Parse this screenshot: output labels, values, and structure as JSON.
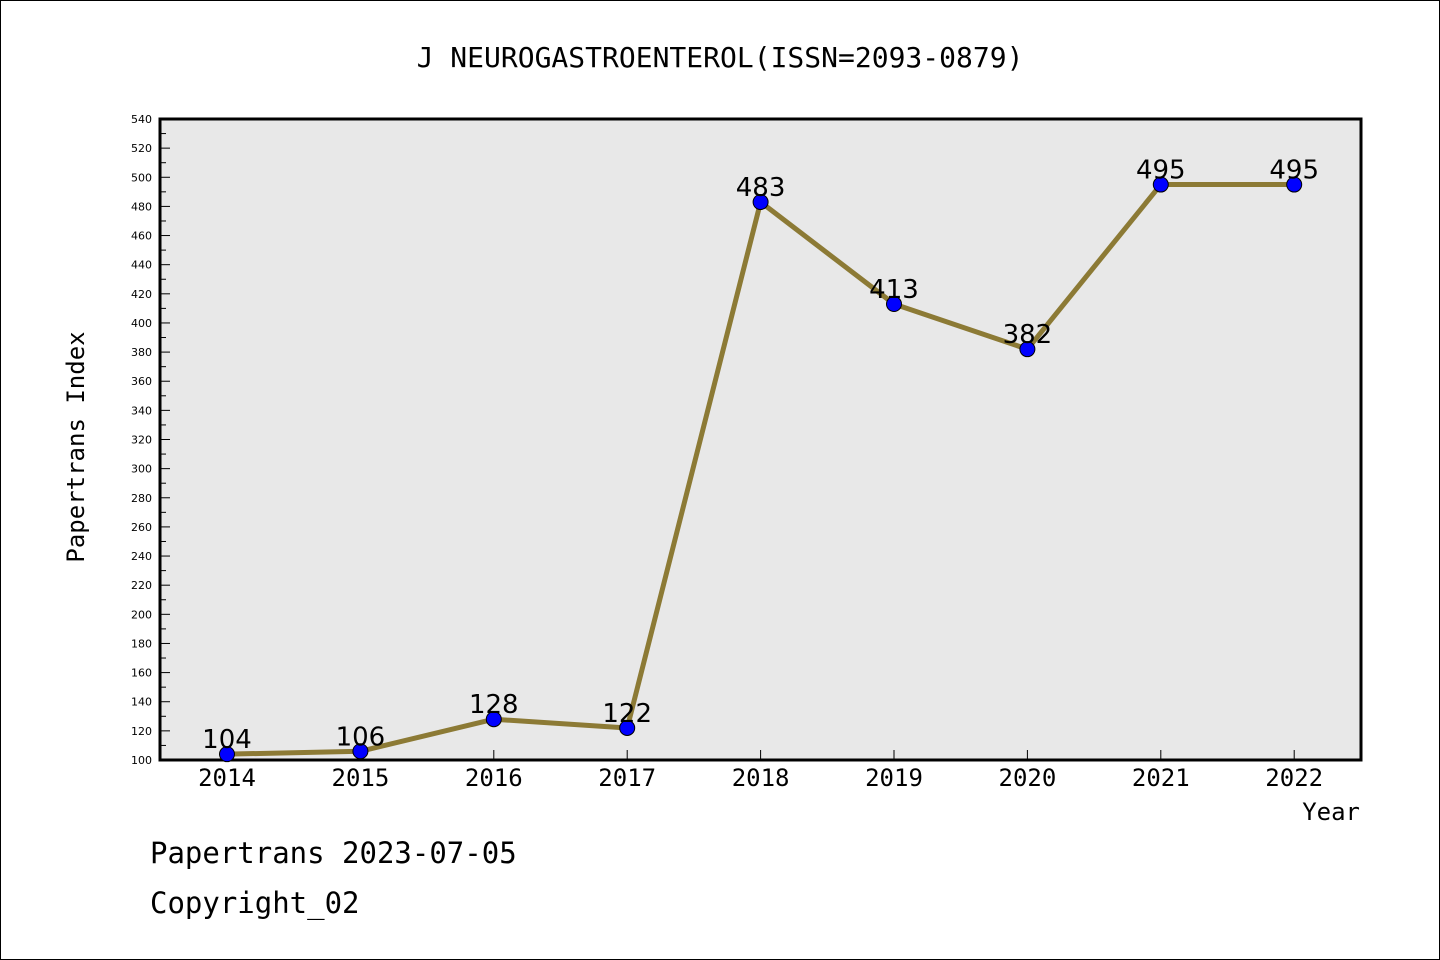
{
  "chart_data": {
    "type": "line",
    "title": "J NEUROGASTROENTEROL(ISSN=2093-0879)",
    "xlabel": "Year",
    "ylabel": "Papertrans Index",
    "categories": [
      "2014",
      "2015",
      "2016",
      "2017",
      "2018",
      "2019",
      "2020",
      "2021",
      "2022"
    ],
    "series": [
      {
        "values": [
          104,
          106,
          128,
          122,
          483,
          413,
          382,
          495,
          495
        ]
      }
    ],
    "data_labels": [
      "104",
      "106",
      "128",
      "122",
      "483",
      "413",
      "382",
      "495",
      "495"
    ],
    "ylim": [
      100,
      540
    ],
    "y_ticks": [
      "100",
      "120",
      "140",
      "160",
      "180",
      "200",
      "220",
      "240",
      "260",
      "280",
      "300",
      "320",
      "340",
      "360",
      "380",
      "400",
      "420",
      "440",
      "460",
      "480",
      "500",
      "520",
      "540"
    ],
    "grid": false,
    "legend": "none",
    "colors": {
      "line": "#8c7a35",
      "marker": "#0000ff",
      "plot_background": "#e8e8e8"
    }
  },
  "footer": {
    "line1": "Papertrans 2023-07-05",
    "line2": "Copyright_02"
  }
}
